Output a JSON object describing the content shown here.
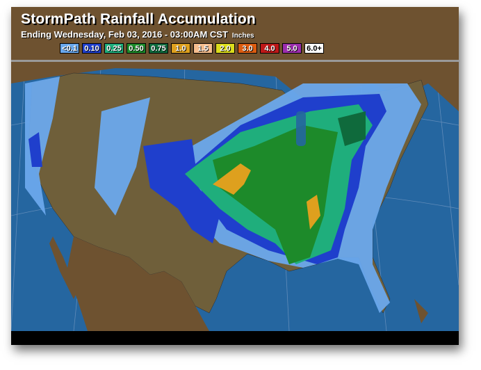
{
  "header": {
    "title": "StormPath Rainfall Accumulation",
    "subtitle": "Ending Wednesday, Feb 03, 2016 - 03:00AM CST",
    "units": "Inches"
  },
  "legend": [
    {
      "label": "<0.1",
      "color": "#6aa8ec"
    },
    {
      "label": "0.10",
      "color": "#1f3fcc"
    },
    {
      "label": "0.25",
      "color": "#1fae7c"
    },
    {
      "label": "0.50",
      "color": "#1d8a2a"
    },
    {
      "label": "0.75",
      "color": "#0f6a3c"
    },
    {
      "label": "1.0",
      "color": "#dea01e"
    },
    {
      "label": "1.5",
      "color": "#f6be8e"
    },
    {
      "label": "2.0",
      "color": "#dcdc1c"
    },
    {
      "label": "3.0",
      "color": "#dc5c10"
    },
    {
      "label": "4.0",
      "color": "#be1818"
    },
    {
      "label": "5.0",
      "color": "#9c2eae"
    },
    {
      "label": "6.0+",
      "color": "#ffffff"
    }
  ],
  "colors": {
    "ocean": "#2566a0",
    "land": "#6e5230",
    "us_land": "#6f5f3a"
  }
}
